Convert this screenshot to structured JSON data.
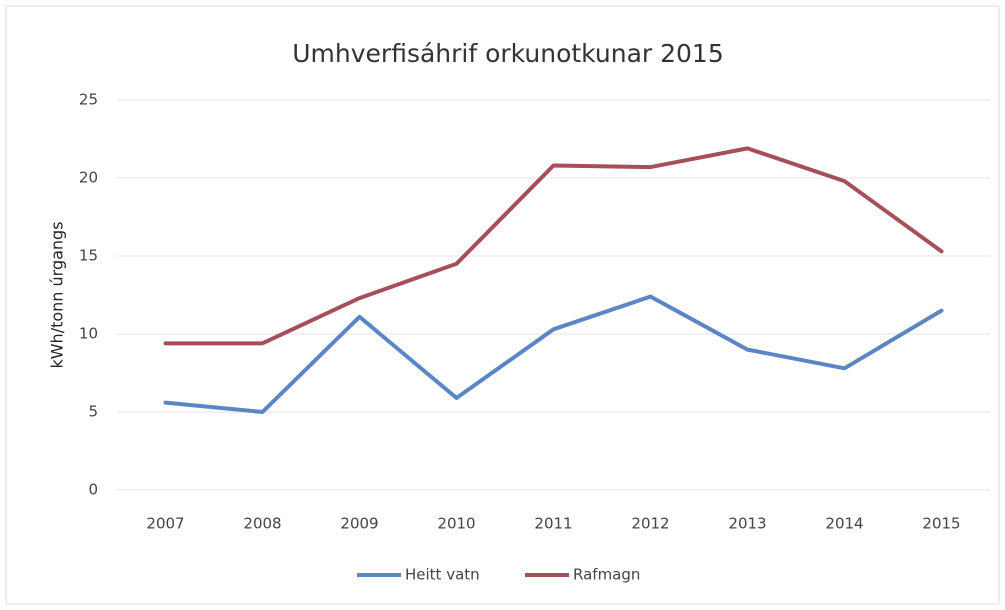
{
  "chart_data": {
    "type": "line",
    "title": "Umhverfisáhrif orkunotkunar 2015",
    "y_label": "kWh/tonn úrgangs",
    "categories": [
      "2007",
      "2008",
      "2009",
      "2010",
      "2011",
      "2012",
      "2013",
      "2014",
      "2015"
    ],
    "series": [
      {
        "name": "Heitt vatn",
        "color": "#5b86c6",
        "values": [
          5.6,
          5.0,
          11.1,
          5.9,
          10.3,
          12.4,
          9.0,
          7.8,
          11.5
        ]
      },
      {
        "name": "Rafmagn",
        "color": "#a54f5a",
        "values": [
          9.4,
          9.4,
          12.3,
          14.5,
          20.8,
          20.7,
          21.9,
          19.8,
          15.3
        ]
      }
    ],
    "ylim": [
      0,
      25
    ],
    "yticks": [
      0,
      5,
      10,
      15,
      20,
      25
    ],
    "grid": true,
    "legend": "bottom"
  }
}
